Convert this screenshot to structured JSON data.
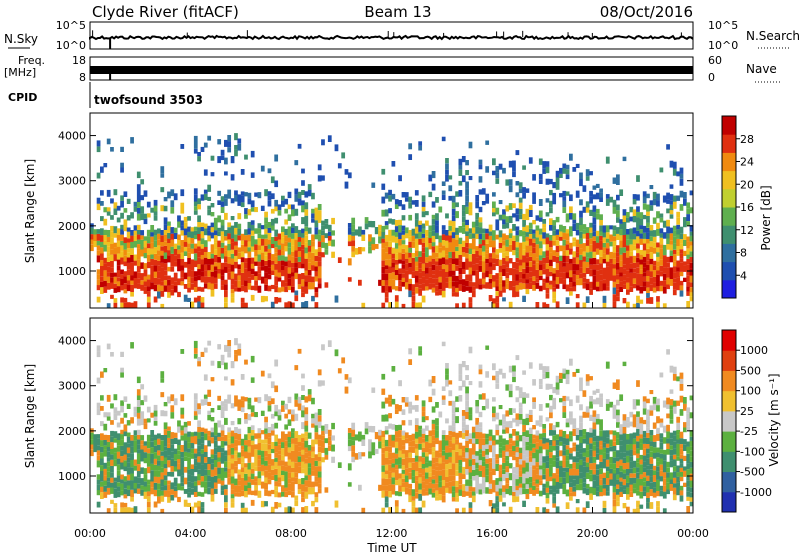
{
  "header": {
    "station": "Clyde River (fitACF)",
    "beam": "Beam 13",
    "date": "08/Oct/2016"
  },
  "strips": {
    "nsky_label": "N.Sky",
    "nsky_ticks": [
      "10^5",
      "10^0"
    ],
    "nsearch_label": "N.Search",
    "nsearch_ticks": [
      "10^5",
      "10^0"
    ],
    "freq_label": "Freq.",
    "freq_unit": "[MHz]",
    "freq_ticks": [
      "18",
      "8"
    ],
    "nave_label": "Nave",
    "nave_ticks": [
      "60",
      "0"
    ],
    "cpid_label": "CPID",
    "cpid_value": "twofsound 3503"
  },
  "chart_data": [
    {
      "type": "heatmap",
      "name": "power-panel",
      "ylabel": "Slant Range [km]",
      "xlabel": "",
      "x_range_hours": [
        0,
        24
      ],
      "ylim": [
        180,
        4500
      ],
      "yticks": [
        "4000",
        "3000",
        "2000",
        "1000"
      ],
      "ytick_values": [
        4000,
        3000,
        2000,
        1000
      ],
      "colorbar": {
        "label": "Power [dB]",
        "ticks": [
          "28",
          "24",
          "20",
          "16",
          "12",
          "8",
          "4"
        ],
        "tick_values": [
          28,
          24,
          20,
          16,
          12,
          8,
          4
        ],
        "range": [
          0,
          32
        ],
        "colors": [
          "#1f1fe0",
          "#1f4fb0",
          "#2f6f9f",
          "#3f8f6f",
          "#5faf4f",
          "#c0cf30",
          "#f0c020",
          "#f08a10",
          "#e03010",
          "#c00000"
        ]
      }
    },
    {
      "type": "heatmap",
      "name": "velocity-panel",
      "ylabel": "Slant Range [km]",
      "xlabel": "Time UT",
      "x_range_hours": [
        0,
        24
      ],
      "xticks": [
        "00:00",
        "04:00",
        "08:00",
        "12:00",
        "16:00",
        "20:00",
        "00:00"
      ],
      "xtick_values": [
        0,
        4,
        8,
        12,
        16,
        20,
        24
      ],
      "ylim": [
        180,
        4500
      ],
      "yticks": [
        "4000",
        "3000",
        "2000",
        "1000"
      ],
      "ytick_values": [
        4000,
        3000,
        2000,
        1000
      ],
      "colorbar": {
        "label": "Velocity [m s⁻¹]",
        "ticks": [
          "1000",
          "500",
          "100",
          "25",
          "-25",
          "-100",
          "-500",
          "-1000"
        ],
        "colors": [
          "#2030b0",
          "#3060a0",
          "#3f8f6f",
          "#5cb040",
          "#c8c8c8",
          "#f0c030",
          "#f08a20",
          "#e04010",
          "#e00000"
        ]
      }
    }
  ]
}
